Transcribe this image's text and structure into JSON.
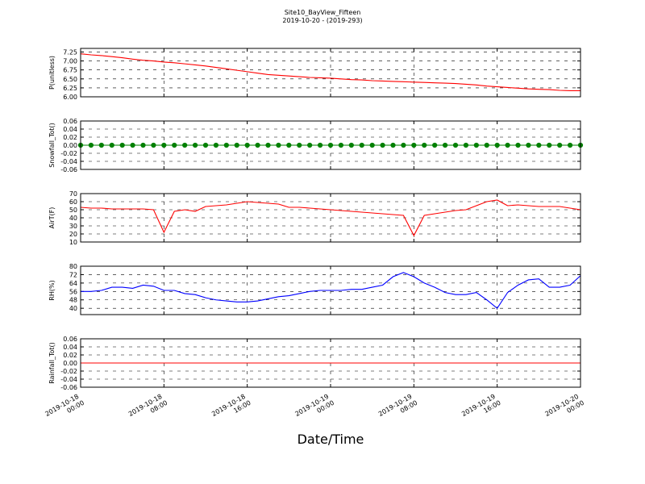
{
  "chart_data": [
    {
      "type": "line",
      "title": "Site10_BayView_Fifteen",
      "subtitle": "2019-10-20 - (2019-293)",
      "y_label": "P(unitless)",
      "x": [
        "2019-10-18 00:00",
        "2019-10-18 01:00",
        "2019-10-18 02:00",
        "2019-10-18 03:00",
        "2019-10-18 04:00",
        "2019-10-18 05:00",
        "2019-10-18 06:00",
        "2019-10-18 07:00",
        "2019-10-18 08:00",
        "2019-10-18 09:00",
        "2019-10-18 10:00",
        "2019-10-18 11:00",
        "2019-10-18 12:00",
        "2019-10-18 13:00",
        "2019-10-18 14:00",
        "2019-10-18 15:00",
        "2019-10-18 16:00",
        "2019-10-18 17:00",
        "2019-10-18 18:00",
        "2019-10-18 19:00",
        "2019-10-18 20:00",
        "2019-10-18 21:00",
        "2019-10-18 22:00",
        "2019-10-18 23:00",
        "2019-10-19 00:00",
        "2019-10-19 01:00",
        "2019-10-19 02:00",
        "2019-10-19 03:00",
        "2019-10-19 04:00",
        "2019-10-19 05:00",
        "2019-10-19 06:00",
        "2019-10-19 07:00",
        "2019-10-19 08:00",
        "2019-10-19 09:00",
        "2019-10-19 10:00",
        "2019-10-19 11:00",
        "2019-10-19 12:00",
        "2019-10-19 13:00",
        "2019-10-19 14:00",
        "2019-10-19 15:00",
        "2019-10-19 16:00",
        "2019-10-19 17:00",
        "2019-10-19 18:00",
        "2019-10-19 19:00",
        "2019-10-19 20:00",
        "2019-10-19 21:00",
        "2019-10-19 22:00",
        "2019-10-19 23:00",
        "2019-10-20 00:00"
      ],
      "series": [
        {
          "color": "#ff0000",
          "values": [
            7.2,
            7.17,
            7.15,
            7.12,
            7.09,
            7.05,
            7.02,
            7.0,
            6.97,
            6.95,
            6.92,
            6.89,
            6.86,
            6.82,
            6.78,
            6.74,
            6.7,
            6.66,
            6.62,
            6.6,
            6.58,
            6.56,
            6.54,
            6.53,
            6.52,
            6.5,
            6.48,
            6.47,
            6.45,
            6.44,
            6.43,
            6.42,
            6.41,
            6.4,
            6.39,
            6.38,
            6.37,
            6.35,
            6.33,
            6.3,
            6.28,
            6.26,
            6.24,
            6.22,
            6.21,
            6.2,
            6.18,
            6.17,
            6.17
          ]
        }
      ],
      "xlim": [
        "2019-10-18 00:00",
        "2019-10-20 00:00"
      ],
      "xticks": [
        "2019-10-18 00:00",
        "2019-10-18 08:00",
        "2019-10-18 16:00",
        "2019-10-19 00:00",
        "2019-10-19 08:00",
        "2019-10-19 16:00",
        "2019-10-20 00:00"
      ],
      "ylim": [
        6.0,
        7.35
      ],
      "yticks": [
        {
          "value": 6,
          "label": "6.00"
        },
        6.25,
        {
          "value": 6.5,
          "label": "6.50"
        },
        6.75,
        {
          "value": 7,
          "label": "7.00"
        },
        7.25
      ],
      "grid": true
    },
    {
      "type": "line",
      "y_label": "Snowfall_Tot()",
      "marker": true,
      "x": [
        "2019-10-18 00:00",
        "2019-10-18 01:00",
        "2019-10-18 02:00",
        "2019-10-18 03:00",
        "2019-10-18 04:00",
        "2019-10-18 05:00",
        "2019-10-18 06:00",
        "2019-10-18 07:00",
        "2019-10-18 08:00",
        "2019-10-18 09:00",
        "2019-10-18 10:00",
        "2019-10-18 11:00",
        "2019-10-18 12:00",
        "2019-10-18 13:00",
        "2019-10-18 14:00",
        "2019-10-18 15:00",
        "2019-10-18 16:00",
        "2019-10-18 17:00",
        "2019-10-18 18:00",
        "2019-10-18 19:00",
        "2019-10-18 20:00",
        "2019-10-18 21:00",
        "2019-10-18 22:00",
        "2019-10-18 23:00",
        "2019-10-19 00:00",
        "2019-10-19 01:00",
        "2019-10-19 02:00",
        "2019-10-19 03:00",
        "2019-10-19 04:00",
        "2019-10-19 05:00",
        "2019-10-19 06:00",
        "2019-10-19 07:00",
        "2019-10-19 08:00",
        "2019-10-19 09:00",
        "2019-10-19 10:00",
        "2019-10-19 11:00",
        "2019-10-19 12:00",
        "2019-10-19 13:00",
        "2019-10-19 14:00",
        "2019-10-19 15:00",
        "2019-10-19 16:00",
        "2019-10-19 17:00",
        "2019-10-19 18:00",
        "2019-10-19 19:00",
        "2019-10-19 20:00",
        "2019-10-19 21:00",
        "2019-10-19 22:00",
        "2019-10-19 23:00",
        "2019-10-20 00:00"
      ],
      "series": [
        {
          "color": "#008000",
          "values": [
            0,
            0,
            0,
            0,
            0,
            0,
            0,
            0,
            0,
            0,
            0,
            0,
            0,
            0,
            0,
            0,
            0,
            0,
            0,
            0,
            0,
            0,
            0,
            0,
            0,
            0,
            0,
            0,
            0,
            0,
            0,
            0,
            0,
            0,
            0,
            0,
            0,
            0,
            0,
            0,
            0,
            0,
            0,
            0,
            0,
            0,
            0,
            0,
            0
          ]
        }
      ],
      "xlim": [
        "2019-10-18 00:00",
        "2019-10-20 00:00"
      ],
      "xticks": [
        "2019-10-18 00:00",
        "2019-10-18 08:00",
        "2019-10-18 16:00",
        "2019-10-19 00:00",
        "2019-10-19 08:00",
        "2019-10-19 16:00",
        "2019-10-20 00:00"
      ],
      "ylim": [
        -0.06,
        0.06
      ],
      "yticks": [
        -0.06,
        -0.04,
        -0.02,
        {
          "value": 0,
          "label": "0.00"
        },
        0.02,
        0.04,
        0.06
      ],
      "grid": true
    },
    {
      "type": "line",
      "y_label": "AirT(F)",
      "x": [
        "2019-10-18 00:00",
        "2019-10-18 01:00",
        "2019-10-18 02:00",
        "2019-10-18 03:00",
        "2019-10-18 04:00",
        "2019-10-18 05:00",
        "2019-10-18 06:00",
        "2019-10-18 07:00",
        "2019-10-18 08:00",
        "2019-10-18 09:00",
        "2019-10-18 10:00",
        "2019-10-18 11:00",
        "2019-10-18 12:00",
        "2019-10-18 13:00",
        "2019-10-18 14:00",
        "2019-10-18 15:00",
        "2019-10-18 16:00",
        "2019-10-18 17:00",
        "2019-10-18 18:00",
        "2019-10-18 19:00",
        "2019-10-18 20:00",
        "2019-10-18 21:00",
        "2019-10-18 22:00",
        "2019-10-18 23:00",
        "2019-10-19 00:00",
        "2019-10-19 01:00",
        "2019-10-19 02:00",
        "2019-10-19 03:00",
        "2019-10-19 04:00",
        "2019-10-19 05:00",
        "2019-10-19 06:00",
        "2019-10-19 07:00",
        "2019-10-19 08:00",
        "2019-10-19 09:00",
        "2019-10-19 10:00",
        "2019-10-19 11:00",
        "2019-10-19 12:00",
        "2019-10-19 13:00",
        "2019-10-19 14:00",
        "2019-10-19 15:00",
        "2019-10-19 16:00",
        "2019-10-19 17:00",
        "2019-10-19 18:00",
        "2019-10-19 19:00",
        "2019-10-19 20:00",
        "2019-10-19 21:00",
        "2019-10-19 22:00",
        "2019-10-19 23:00",
        "2019-10-20 00:00"
      ],
      "series": [
        {
          "color": "#ff0000",
          "values": [
            53,
            52,
            52,
            51,
            51,
            51,
            51,
            50,
            22,
            48,
            50,
            48,
            54,
            55,
            56,
            58,
            60,
            59,
            58,
            57,
            53,
            53,
            52,
            51,
            50,
            49,
            48,
            47,
            46,
            45,
            44,
            43,
            18,
            43,
            45,
            47,
            49,
            50,
            55,
            60,
            62,
            55,
            56,
            55,
            54,
            54,
            54,
            52,
            50
          ]
        }
      ],
      "xlim": [
        "2019-10-18 00:00",
        "2019-10-20 00:00"
      ],
      "xticks": [
        "2019-10-18 00:00",
        "2019-10-18 08:00",
        "2019-10-18 16:00",
        "2019-10-19 00:00",
        "2019-10-19 08:00",
        "2019-10-19 16:00",
        "2019-10-20 00:00"
      ],
      "ylim": [
        10,
        70
      ],
      "yticks": [
        10,
        20,
        30,
        40,
        50,
        60,
        70
      ],
      "grid": true
    },
    {
      "type": "line",
      "y_label": "RH(%)",
      "x": [
        "2019-10-18 00:00",
        "2019-10-18 01:00",
        "2019-10-18 02:00",
        "2019-10-18 03:00",
        "2019-10-18 04:00",
        "2019-10-18 05:00",
        "2019-10-18 06:00",
        "2019-10-18 07:00",
        "2019-10-18 08:00",
        "2019-10-18 09:00",
        "2019-10-18 10:00",
        "2019-10-18 11:00",
        "2019-10-18 12:00",
        "2019-10-18 13:00",
        "2019-10-18 14:00",
        "2019-10-18 15:00",
        "2019-10-18 16:00",
        "2019-10-18 17:00",
        "2019-10-18 18:00",
        "2019-10-18 19:00",
        "2019-10-18 20:00",
        "2019-10-18 21:00",
        "2019-10-18 22:00",
        "2019-10-18 23:00",
        "2019-10-19 00:00",
        "2019-10-19 01:00",
        "2019-10-19 02:00",
        "2019-10-19 03:00",
        "2019-10-19 04:00",
        "2019-10-19 05:00",
        "2019-10-19 06:00",
        "2019-10-19 07:00",
        "2019-10-19 08:00",
        "2019-10-19 09:00",
        "2019-10-19 10:00",
        "2019-10-19 11:00",
        "2019-10-19 12:00",
        "2019-10-19 13:00",
        "2019-10-19 14:00",
        "2019-10-19 15:00",
        "2019-10-19 16:00",
        "2019-10-19 17:00",
        "2019-10-19 18:00",
        "2019-10-19 19:00",
        "2019-10-19 20:00",
        "2019-10-19 21:00",
        "2019-10-19 22:00",
        "2019-10-19 23:00",
        "2019-10-20 00:00"
      ],
      "series": [
        {
          "color": "#0000ff",
          "values": [
            56,
            56,
            57,
            60,
            60,
            59,
            62,
            61,
            57,
            57,
            54,
            53,
            50,
            48,
            47,
            46,
            46,
            47,
            49,
            51,
            52,
            54,
            56,
            57,
            57,
            57,
            58,
            58,
            60,
            62,
            70,
            74,
            70,
            64,
            60,
            55,
            53,
            53,
            55,
            48,
            40,
            55,
            62,
            67,
            68,
            60,
            60,
            62,
            71
          ]
        }
      ],
      "xlim": [
        "2019-10-18 00:00",
        "2019-10-20 00:00"
      ],
      "xticks": [
        "2019-10-18 00:00",
        "2019-10-18 08:00",
        "2019-10-18 16:00",
        "2019-10-19 00:00",
        "2019-10-19 08:00",
        "2019-10-19 16:00",
        "2019-10-20 00:00"
      ],
      "ylim": [
        34,
        80
      ],
      "yticks": [
        40,
        48,
        56,
        64,
        72,
        80
      ],
      "grid": true
    },
    {
      "type": "line",
      "y_label": "Rainfall_Tot()",
      "x_label": "Date/Time",
      "x": [
        "2019-10-18 00:00",
        "2019-10-18 01:00",
        "2019-10-18 02:00",
        "2019-10-18 03:00",
        "2019-10-18 04:00",
        "2019-10-18 05:00",
        "2019-10-18 06:00",
        "2019-10-18 07:00",
        "2019-10-18 08:00",
        "2019-10-18 09:00",
        "2019-10-18 10:00",
        "2019-10-18 11:00",
        "2019-10-18 12:00",
        "2019-10-18 13:00",
        "2019-10-18 14:00",
        "2019-10-18 15:00",
        "2019-10-18 16:00",
        "2019-10-18 17:00",
        "2019-10-18 18:00",
        "2019-10-18 19:00",
        "2019-10-18 20:00",
        "2019-10-18 21:00",
        "2019-10-18 22:00",
        "2019-10-18 23:00",
        "2019-10-19 00:00",
        "2019-10-19 01:00",
        "2019-10-19 02:00",
        "2019-10-19 03:00",
        "2019-10-19 04:00",
        "2019-10-19 05:00",
        "2019-10-19 06:00",
        "2019-10-19 07:00",
        "2019-10-19 08:00",
        "2019-10-19 09:00",
        "2019-10-19 10:00",
        "2019-10-19 11:00",
        "2019-10-19 12:00",
        "2019-10-19 13:00",
        "2019-10-19 14:00",
        "2019-10-19 15:00",
        "2019-10-19 16:00",
        "2019-10-19 17:00",
        "2019-10-19 18:00",
        "2019-10-19 19:00",
        "2019-10-19 20:00",
        "2019-10-19 21:00",
        "2019-10-19 22:00",
        "2019-10-19 23:00",
        "2019-10-20 00:00"
      ],
      "series": [
        {
          "color": "#ff0000",
          "values": [
            0,
            0,
            0,
            0,
            0,
            0,
            0,
            0,
            0,
            0,
            0,
            0,
            0,
            0,
            0,
            0,
            0,
            0,
            0,
            0,
            0,
            0,
            0,
            0,
            0,
            0,
            0,
            0,
            0,
            0,
            0,
            0,
            0,
            0,
            0,
            0,
            0,
            0,
            0,
            0,
            0,
            0,
            0,
            0,
            0,
            0,
            0,
            0,
            0
          ]
        }
      ],
      "xlim": [
        "2019-10-18 00:00",
        "2019-10-20 00:00"
      ],
      "xticks": [
        "2019-10-18 00:00",
        "2019-10-18 08:00",
        "2019-10-18 16:00",
        "2019-10-19 00:00",
        "2019-10-19 08:00",
        "2019-10-19 16:00",
        "2019-10-20 00:00"
      ],
      "ylim": [
        -0.06,
        0.06
      ],
      "yticks": [
        -0.06,
        -0.04,
        -0.02,
        {
          "value": 0,
          "label": "0.00"
        },
        0.02,
        0.04,
        0.06
      ],
      "grid": true
    }
  ]
}
